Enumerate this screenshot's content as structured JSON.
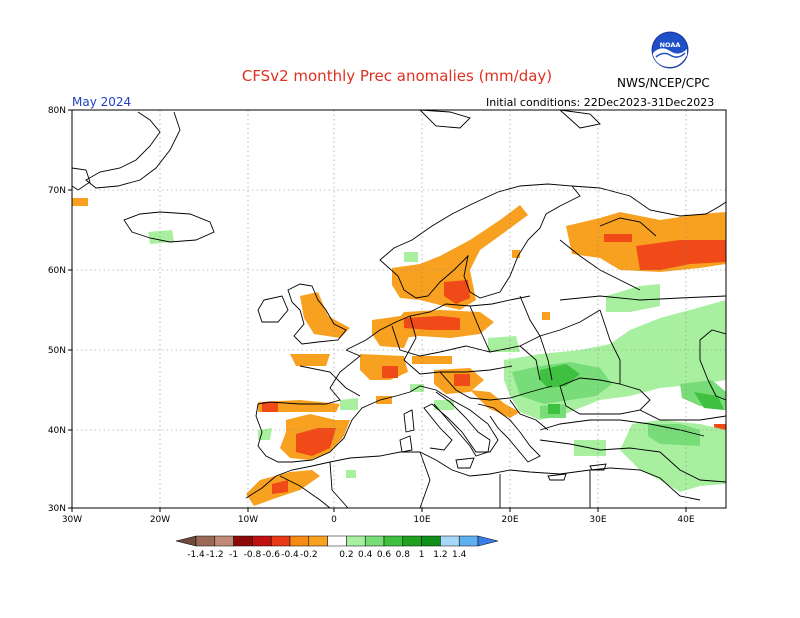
{
  "title": "CFSv2 monthly Prec anomalies (mm/day)",
  "month": "May 2024",
  "initial_conditions": "Initial conditions: 22Dec2023-31Dec2023",
  "agency": "NWS/NCEP/CPC",
  "logo_text": "NOAA",
  "colors": {
    "title": "#e03020",
    "month": "#2040c0",
    "dry": [
      "#6e4a3a",
      "#9a6a56",
      "#c08a76",
      "#8c0a0a",
      "#c01010",
      "#e83a18",
      "#f58a14",
      "#f8a020"
    ],
    "wet": [
      "#a8f0a0",
      "#78dc78",
      "#40c040",
      "#20a020",
      "#10901a",
      "#a8d8f8",
      "#60b0f0",
      "#3c7ce8"
    ]
  },
  "map": {
    "lat_labels": [
      "80N",
      "70N",
      "60N",
      "50N",
      "40N",
      "30N"
    ],
    "lon_labels": [
      "30W",
      "20W",
      "10W",
      "0",
      "10E",
      "20E",
      "30E",
      "40E"
    ]
  },
  "colorbar": {
    "ticks": [
      "-1.4",
      "-1.2",
      "-1",
      "-0.8",
      "-0.6",
      "-0.4",
      "-0.2",
      "0.2",
      "0.4",
      "0.6",
      "0.8",
      "1",
      "1.2",
      "1.4"
    ]
  }
}
